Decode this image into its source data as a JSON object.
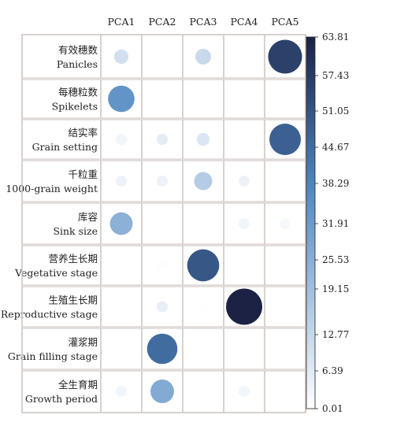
{
  "chart_data": {
    "type": "bubble-matrix",
    "columns": [
      "PCA1",
      "PCA2",
      "PCA3",
      "PCA4",
      "PCA5"
    ],
    "rows": [
      {
        "label_zh": "有效穗数",
        "label_en": "Panicles",
        "values": [
          10,
          0,
          12,
          0,
          56
        ]
      },
      {
        "label_zh": "每穗粒数",
        "label_en": "Spikelets",
        "values": [
          34,
          0,
          0,
          0,
          0
        ]
      },
      {
        "label_zh": "结实率",
        "label_en": "Grain setting",
        "values": [
          3,
          6,
          8,
          0,
          48
        ]
      },
      {
        "label_zh": "千粒重",
        "label_en": "1000-grain weight",
        "values": [
          4,
          4,
          16,
          4,
          0
        ]
      },
      {
        "label_zh": "库容",
        "label_en": "Sink size",
        "values": [
          25,
          0,
          0,
          3,
          2
        ]
      },
      {
        "label_zh": "营养生长期",
        "label_en": "Vegetative stage",
        "values": [
          0,
          0.8,
          50,
          0,
          0
        ]
      },
      {
        "label_zh": "生殖生长期",
        "label_en": "Reproductive stage",
        "values": [
          0,
          5,
          0.3,
          63.81,
          0
        ]
      },
      {
        "label_zh": "灌浆期",
        "label_en": "Grain filling stage",
        "values": [
          0,
          45,
          0,
          0,
          0
        ]
      },
      {
        "label_zh": "全生育期",
        "label_en": "Growth period",
        "values": [
          3,
          27,
          0,
          3,
          0
        ]
      }
    ],
    "colorbar": {
      "min": 0.01,
      "max": 63.81,
      "ticks": [
        "63.81",
        "57.43",
        "51.05",
        "44.67",
        "38.29",
        "31.91",
        "25.53",
        "19.15",
        "12.77",
        "6.39",
        "0.01"
      ],
      "color_low": "#ffffff",
      "color_mid": "#4f86c0",
      "color_high": "#1b2244"
    },
    "grid": true,
    "legend": "right"
  }
}
